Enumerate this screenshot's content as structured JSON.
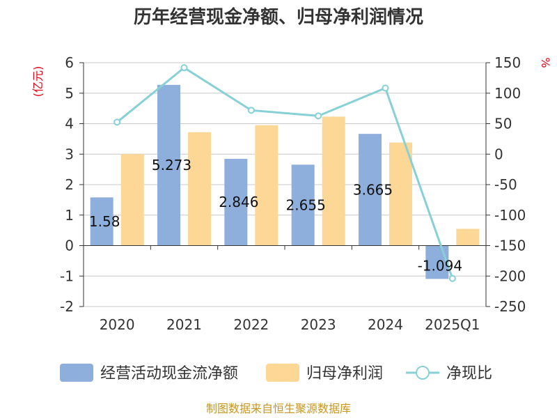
{
  "chart_data": {
    "type": "bar",
    "title": "历年经营现金净额、归母净利润情况",
    "categories": [
      "2020",
      "2021",
      "2022",
      "2023",
      "2024",
      "2025Q1"
    ],
    "series": [
      {
        "name": "经营活动现金流净额",
        "type": "bar",
        "axis": "left",
        "color": "#8eaedb",
        "values": [
          1.58,
          5.273,
          2.846,
          2.655,
          3.665,
          -1.094
        ],
        "labels": [
          "1.58",
          "5.273",
          "2.846",
          "2.655",
          "3.665",
          "-1.094"
        ]
      },
      {
        "name": "归母净利润",
        "type": "bar",
        "axis": "left",
        "color": "#fdd795",
        "values": [
          3.0,
          3.72,
          3.95,
          4.23,
          3.38,
          0.55
        ]
      },
      {
        "name": "净现比",
        "type": "line",
        "axis": "right",
        "color": "#86d0d6",
        "values": [
          52.5,
          141.8,
          71.9,
          62.7,
          108.4,
          -204
        ]
      }
    ],
    "y_left": {
      "unit": "(亿元)",
      "min": -2,
      "max": 6,
      "ticks": [
        "-2",
        "-1",
        "0",
        "1",
        "2",
        "3",
        "4",
        "5",
        "6"
      ]
    },
    "y_right": {
      "unit": "%",
      "min": -250,
      "max": 150,
      "ticks": [
        "-250",
        "-200",
        "-150",
        "-100",
        "-50",
        "0",
        "50",
        "100",
        "150"
      ]
    },
    "grid": true,
    "legend_position": "bottom"
  },
  "source": "制图数据来自恒生聚源数据库"
}
